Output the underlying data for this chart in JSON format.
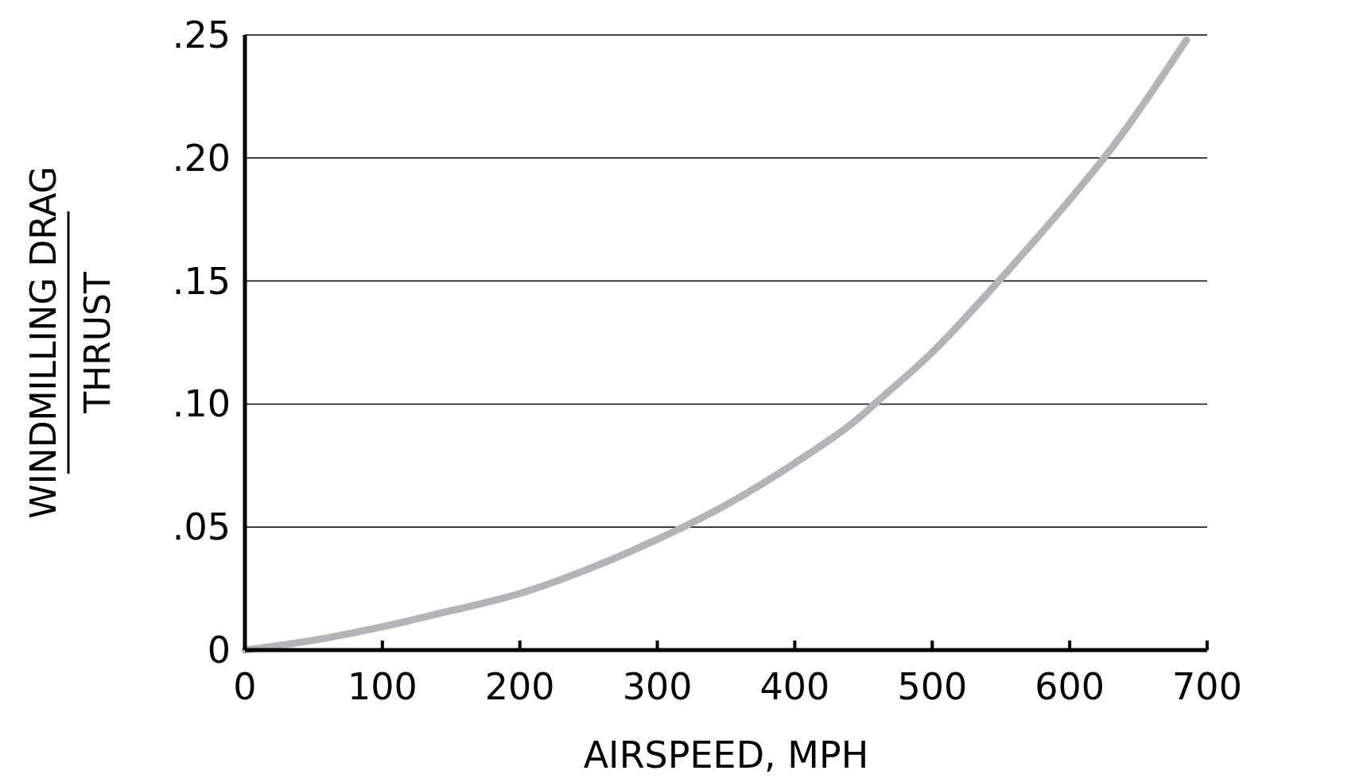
{
  "chart_data": {
    "type": "line",
    "xlabel": "AIRSPEED, MPH",
    "ylabel": "WINDMILLING DRAG\nTHRUST",
    "x": [
      0,
      50,
      100,
      150,
      200,
      250,
      300,
      350,
      400,
      450,
      458,
      500,
      550,
      600,
      625,
      685
    ],
    "series": [
      {
        "color": "#b4b4b8",
        "values": [
          0,
          0.004,
          0.0095,
          0.016,
          0.023,
          0.033,
          0.045,
          0.059,
          0.076,
          0.096,
          0.1,
          0.121,
          0.151,
          0.183,
          0.2,
          0.248
        ]
      }
    ],
    "xlim": [
      0,
      700
    ],
    "xticks": [
      0,
      100,
      200,
      300,
      400,
      500,
      600,
      700
    ],
    "ylim": [
      0,
      0.25
    ],
    "yticks": [
      {
        "value": 0,
        "label": "0"
      },
      {
        "value": 0.05,
        "label": ".05"
      },
      {
        "value": 0.1,
        "label": ".10"
      },
      {
        "value": 0.15,
        "label": ".15"
      },
      {
        "value": 0.2,
        "label": ".20"
      },
      {
        "value": 0.25,
        "label": ".25"
      }
    ],
    "grid": "y",
    "marker": "none",
    "line_style": "solid"
  }
}
